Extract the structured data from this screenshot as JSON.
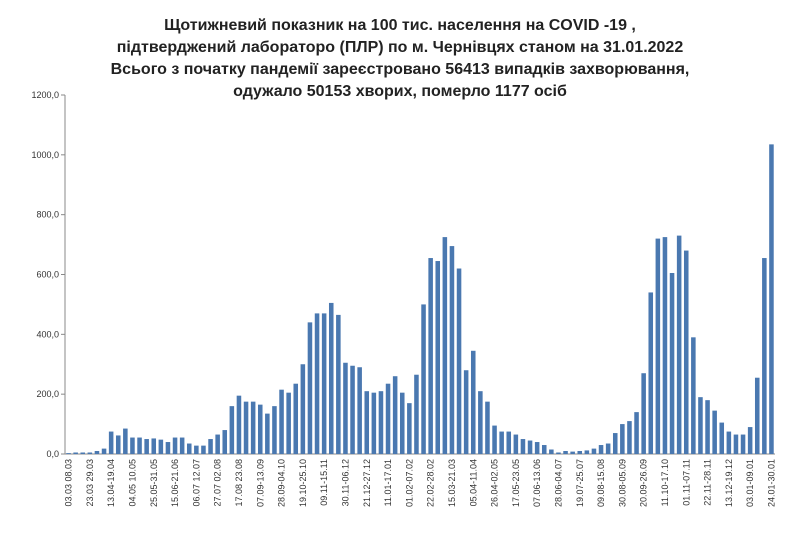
{
  "chart_data": {
    "type": "bar",
    "title": [
      "Щотижневий показник  на 100 тис. населення на COVID -19 ,",
      "підтверджений лабораторо (ПЛР) по м. Чернівцях станом на 31.01.2022",
      "Всього з початку пандемії зареєстровано 56413 випадків захворювання,",
      "одужало 50153 хворих, померло 1177 осіб"
    ],
    "categories": [
      "03.03 08.03",
      null,
      null,
      "23.03 29.03",
      null,
      null,
      "13.04-19.04",
      null,
      null,
      "04.05 10.05",
      null,
      null,
      "25.05-31.05",
      null,
      null,
      "15.06-21.06",
      null,
      null,
      "06.07 12.07",
      null,
      null,
      "27.07 02.08",
      null,
      null,
      "17.08 23.08",
      null,
      null,
      "07.09-13.09",
      null,
      null,
      "28.09-04.10",
      null,
      null,
      "19.10-25.10",
      null,
      null,
      "09.11-15.11",
      null,
      null,
      "30.11-06.12",
      null,
      null,
      "21.12-27.12",
      null,
      null,
      "11.01-17.01",
      null,
      null,
      "01.02-07.02",
      null,
      null,
      "22.02-28.02",
      null,
      null,
      "15.03-21.03",
      null,
      null,
      "05.04-11.04",
      null,
      null,
      "26.04-02.05",
      null,
      null,
      "17.05-23.05",
      null,
      null,
      "07.06-13.06",
      null,
      null,
      "28.06-04.07",
      null,
      null,
      "19.07-25.07",
      null,
      null,
      "09.08-15.08",
      null,
      null,
      "30.08-05.09",
      null,
      null,
      "20.09-26.09",
      null,
      null,
      "11.10-17.10",
      null,
      null,
      "01.11-07.11",
      null,
      null,
      "22.11-28.11",
      null,
      null,
      "13.12-19.12",
      null,
      null,
      "03.01-09.01",
      null,
      null,
      "24.01-30.01"
    ],
    "values": [
      3,
      5,
      5,
      5,
      10,
      18,
      75,
      62,
      85,
      55,
      55,
      50,
      52,
      48,
      40,
      55,
      55,
      35,
      28,
      28,
      50,
      65,
      80,
      160,
      195,
      175,
      175,
      165,
      135,
      160,
      215,
      205,
      235,
      300,
      440,
      470,
      470,
      505,
      465,
      305,
      295,
      290,
      210,
      205,
      210,
      235,
      260,
      205,
      170,
      265,
      500,
      655,
      645,
      725,
      695,
      620,
      280,
      345,
      210,
      175,
      95,
      75,
      75,
      65,
      50,
      45,
      40,
      30,
      15,
      5,
      10,
      8,
      10,
      12,
      18,
      30,
      35,
      70,
      100,
      110,
      140,
      270,
      540,
      720,
      725,
      605,
      730,
      680,
      390,
      190,
      180,
      145,
      105,
      75,
      65,
      65,
      90,
      255,
      655,
      1035
    ],
    "color": "#4a78b0",
    "ylim": [
      0,
      1200
    ],
    "yticks": [
      {
        "value": 0,
        "label": "0,0"
      },
      {
        "value": 200,
        "label": "200,0"
      },
      {
        "value": 400,
        "label": "400,0"
      },
      {
        "value": 600,
        "label": "600,0"
      },
      {
        "value": 800,
        "label": "800,0"
      },
      {
        "value": 1000,
        "label": "1000,0"
      },
      {
        "value": 1200,
        "label": "1200,0"
      }
    ]
  }
}
